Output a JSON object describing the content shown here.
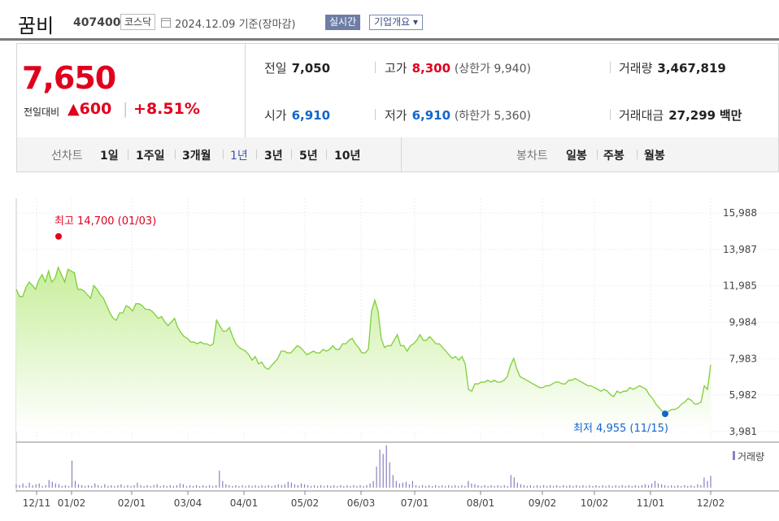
{
  "header": {
    "name": "꿈비",
    "code": "407400",
    "market": "코스닥",
    "date": "2024.12.09 기준(장마감)",
    "realtime_label": "실시간",
    "company_info_label": "기업개요 ▾"
  },
  "quote": {
    "price": "7,650",
    "change_label": "전일대비",
    "change_arrow": "▲",
    "change": "600",
    "separator": "|",
    "change_pct": "+8.51%",
    "prev_close": {
      "label": "전일",
      "value": "7,050"
    },
    "open": {
      "label": "시가",
      "value": "6,910"
    },
    "high": {
      "label": "고가",
      "value": "8,300",
      "sub": "(상한가 9,940)"
    },
    "low": {
      "label": "저가",
      "value": "6,910",
      "sub": "(하한가 5,360)"
    },
    "volume": {
      "label": "거래량",
      "value": "3,467,819"
    },
    "amount": {
      "label": "거래대금",
      "value": "27,299",
      "unit": "백만"
    }
  },
  "tabs": {
    "line_label": "선차트",
    "line_periods": [
      "1일",
      "1주일",
      "3개월",
      "1년",
      "3년",
      "5년",
      "10년"
    ],
    "active_period": "1년",
    "candle_label": "봉차트",
    "candle_periods": [
      "일봉",
      "주봉",
      "월봉"
    ]
  },
  "colors": {
    "up": "#e0001e",
    "down": "#1166cc",
    "line": "#7fcf3a",
    "volume": "#8a7fc0"
  },
  "chart_data": {
    "type": "area",
    "y_ticks": [
      "15,988",
      "13,987",
      "11,985",
      "9,984",
      "7,983",
      "5,982",
      "3,981"
    ],
    "ylim": [
      3981,
      15988
    ],
    "x_ticks": [
      "12/11",
      "01/02",
      "02/01",
      "03/04",
      "04/01",
      "05/02",
      "06/03",
      "07/01",
      "08/01",
      "09/02",
      "10/02",
      "11/01",
      "12/02"
    ],
    "max_label": "최고 14,700 (01/03)",
    "min_label": "최저 4,955 (11/15)",
    "max_value": 14700,
    "min_value": 4955,
    "volume_legend": "거래량",
    "series": [
      {
        "values": [
          11800,
          11400,
          11400,
          11900,
          12200,
          12000,
          11800,
          12300,
          12600,
          12200,
          12800,
          12200,
          12400,
          13000,
          12600,
          12200,
          12900,
          12800,
          12700,
          11800,
          11800,
          11700,
          11500,
          11300,
          12000,
          11800,
          11500,
          11300,
          10900,
          10500,
          10200,
          10100,
          10500,
          10500,
          10900,
          10800,
          10600,
          11000,
          11000,
          10900,
          10700,
          10700,
          10600,
          10400,
          10200,
          10300,
          10000,
          9800,
          10000,
          10200,
          9700,
          9400,
          9200,
          9100,
          8900,
          8900,
          8800,
          8900,
          8800,
          8800,
          8700,
          8800,
          10100,
          9800,
          9500,
          9500,
          9700,
          9200,
          8800,
          8600,
          8500,
          8400,
          8200,
          7900,
          8100,
          7700,
          7800,
          7500,
          7400,
          7600,
          7800,
          8000,
          8400,
          8400,
          8300,
          8300,
          8500,
          8700,
          8600,
          8400,
          8200,
          8300,
          8400,
          8300,
          8300,
          8500,
          8400,
          8500,
          8700,
          8500,
          8500,
          8800,
          8800,
          9000,
          9100,
          8800,
          8600,
          8300,
          8300,
          8500,
          10600,
          11200,
          10600,
          9100,
          8600,
          8700,
          8700,
          9000,
          9300,
          8700,
          8700,
          8400,
          8700,
          8800,
          9000,
          9300,
          9000,
          9000,
          9200,
          9000,
          8800,
          8800,
          8600,
          8400,
          8200,
          8000,
          8100,
          7900,
          8100,
          7700,
          6300,
          6200,
          6600,
          6600,
          6700,
          6700,
          6800,
          6700,
          6800,
          6700,
          6700,
          6800,
          7000,
          7600,
          8000,
          7400,
          7000,
          6900,
          6800,
          6700,
          6600,
          6500,
          6400,
          6400,
          6500,
          6500,
          6600,
          6700,
          6700,
          6600,
          6600,
          6800,
          6800,
          6900,
          6800,
          6700,
          6600,
          6500,
          6500,
          6400,
          6300,
          6200,
          6300,
          6200,
          6000,
          5900,
          6200,
          6100,
          6200,
          6200,
          6400,
          6300,
          6400,
          6500,
          6400,
          6300,
          6000,
          5800,
          5500,
          5300,
          5100,
          5000,
          5100,
          5200,
          5200,
          5300,
          5500,
          5600,
          5800,
          5700,
          5500,
          5500,
          5600,
          6500,
          6300,
          7650
        ]
      }
    ],
    "volume": [
      0.4,
      0.3,
      0.5,
      0.2,
      0.6,
      0.3,
      0.4,
      0.5,
      0.2,
      0.3,
      0.9,
      0.7,
      0.5,
      0.4,
      0.2,
      0.3,
      0.2,
      3.2,
      0.8,
      0.4,
      0.3,
      0.2,
      0.3,
      0.2,
      0.5,
      0.3,
      0.2,
      0.4,
      0.2,
      0.3,
      0.2,
      0.3,
      0.4,
      0.2,
      0.3,
      0.2,
      0.3,
      0.6,
      0.3,
      0.2,
      0.3,
      0.2,
      0.3,
      0.4,
      0.2,
      0.3,
      0.2,
      0.3,
      0.2,
      0.3,
      0.5,
      0.4,
      0.2,
      0.3,
      0.2,
      0.3,
      0.2,
      0.3,
      0.2,
      0.3,
      0.2,
      0.3,
      2.0,
      0.8,
      0.4,
      0.3,
      0.2,
      0.3,
      0.2,
      0.3,
      0.2,
      0.3,
      0.2,
      0.3,
      0.2,
      0.3,
      0.2,
      0.3,
      0.2,
      0.3,
      0.4,
      0.3,
      0.4,
      0.7,
      0.6,
      0.4,
      0.3,
      0.5,
      0.4,
      0.3,
      0.2,
      0.3,
      0.2,
      0.3,
      0.2,
      0.3,
      0.2,
      0.3,
      0.2,
      0.3,
      0.2,
      0.3,
      0.2,
      0.3,
      0.2,
      0.3,
      0.2,
      0.3,
      0.5,
      0.8,
      2.5,
      4.5,
      4.0,
      5.0,
      3.0,
      1.5,
      0.8,
      0.5,
      0.6,
      0.7,
      0.4,
      0.8,
      0.3,
      0.2,
      0.3,
      0.2,
      0.3,
      0.2,
      0.3,
      0.2,
      0.3,
      0.2,
      0.3,
      0.2,
      0.3,
      0.2,
      0.3,
      0.2,
      0.8,
      0.5,
      0.4,
      0.3,
      0.2,
      0.3,
      0.2,
      0.3,
      0.2,
      0.3,
      0.2,
      0.3,
      0.2,
      1.5,
      1.2,
      0.6,
      0.4,
      0.3,
      0.2,
      0.3,
      0.2,
      0.3,
      0.2,
      0.3,
      0.2,
      0.3,
      0.2,
      0.3,
      0.2,
      0.3,
      0.2,
      0.3,
      0.2,
      0.3,
      0.2,
      0.3,
      0.2,
      0.3,
      0.2,
      0.3,
      0.2,
      0.3,
      0.2,
      0.3,
      0.2,
      0.3,
      0.2,
      0.3,
      0.2,
      0.3,
      0.2,
      0.3,
      0.2,
      0.3,
      0.4,
      0.3,
      0.5,
      0.8,
      0.5,
      0.4,
      0.3,
      0.2,
      0.3,
      0.2,
      0.3,
      0.2,
      0.3,
      0.2,
      0.3,
      0.2,
      0.4,
      0.3,
      1.2,
      0.8,
      1.4
    ]
  }
}
